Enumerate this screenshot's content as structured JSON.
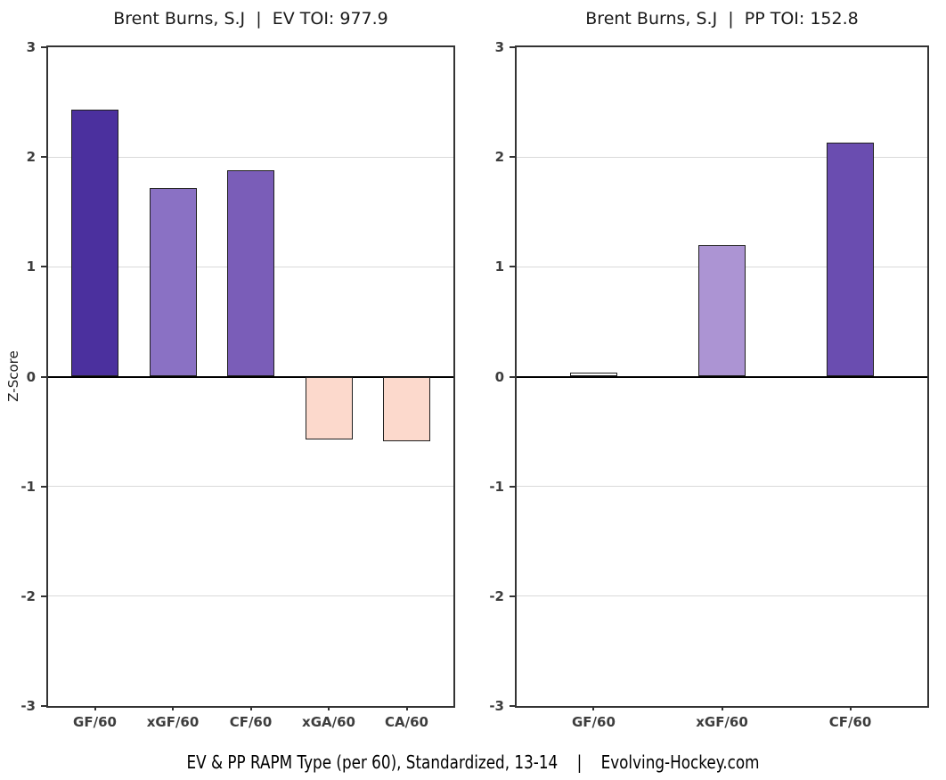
{
  "footer": {
    "text": "EV & PP RAPM Type (per 60), Standardized, 13-14    |    Evolving-Hockey.com"
  },
  "colors": {
    "dark_purple": "#4B309E",
    "medium_purple": "#7A5DB8",
    "light_purple": "#8A71C4",
    "pale_purple": "#AC94D3",
    "salmon_negative": "#FCD9CC",
    "white_bar": "#FFFFFF",
    "zero_line": "#000000",
    "gridline": "#D9D9D9",
    "frame": "#333333",
    "tick_label": "#3D3D3D"
  },
  "chart_data": [
    {
      "type": "bar",
      "title": "Brent Burns, S.J  |  EV TOI: 977.9",
      "categories": [
        "GF/60",
        "xGF/60",
        "CF/60",
        "xGA/60",
        "CA/60"
      ],
      "values": [
        2.43,
        1.72,
        1.88,
        -0.57,
        -0.59
      ],
      "bar_colors": [
        "#4B309E",
        "#8A71C4",
        "#7A5DB8",
        "#FCD9CC",
        "#FCD9CC"
      ],
      "xlabel": "",
      "ylabel": "Z-Score",
      "ylim": [
        -3,
        3
      ],
      "yticks": [
        3,
        2,
        1,
        0,
        -1,
        -2,
        -3
      ],
      "grid": "horizontal-major",
      "legend": "none"
    },
    {
      "type": "bar",
      "title": "Brent Burns, S.J  |  PP TOI: 152.8",
      "categories": [
        "GF/60",
        "xGF/60",
        "CF/60"
      ],
      "values": [
        0.04,
        1.2,
        2.13
      ],
      "bar_colors": [
        "#FFFFFF",
        "#AC94D3",
        "#6A4DB0"
      ],
      "xlabel": "",
      "ylabel": "",
      "ylim": [
        -3,
        3
      ],
      "yticks": [
        3,
        2,
        1,
        0,
        -1,
        -2,
        -3
      ],
      "grid": "horizontal-major",
      "legend": "none"
    }
  ]
}
